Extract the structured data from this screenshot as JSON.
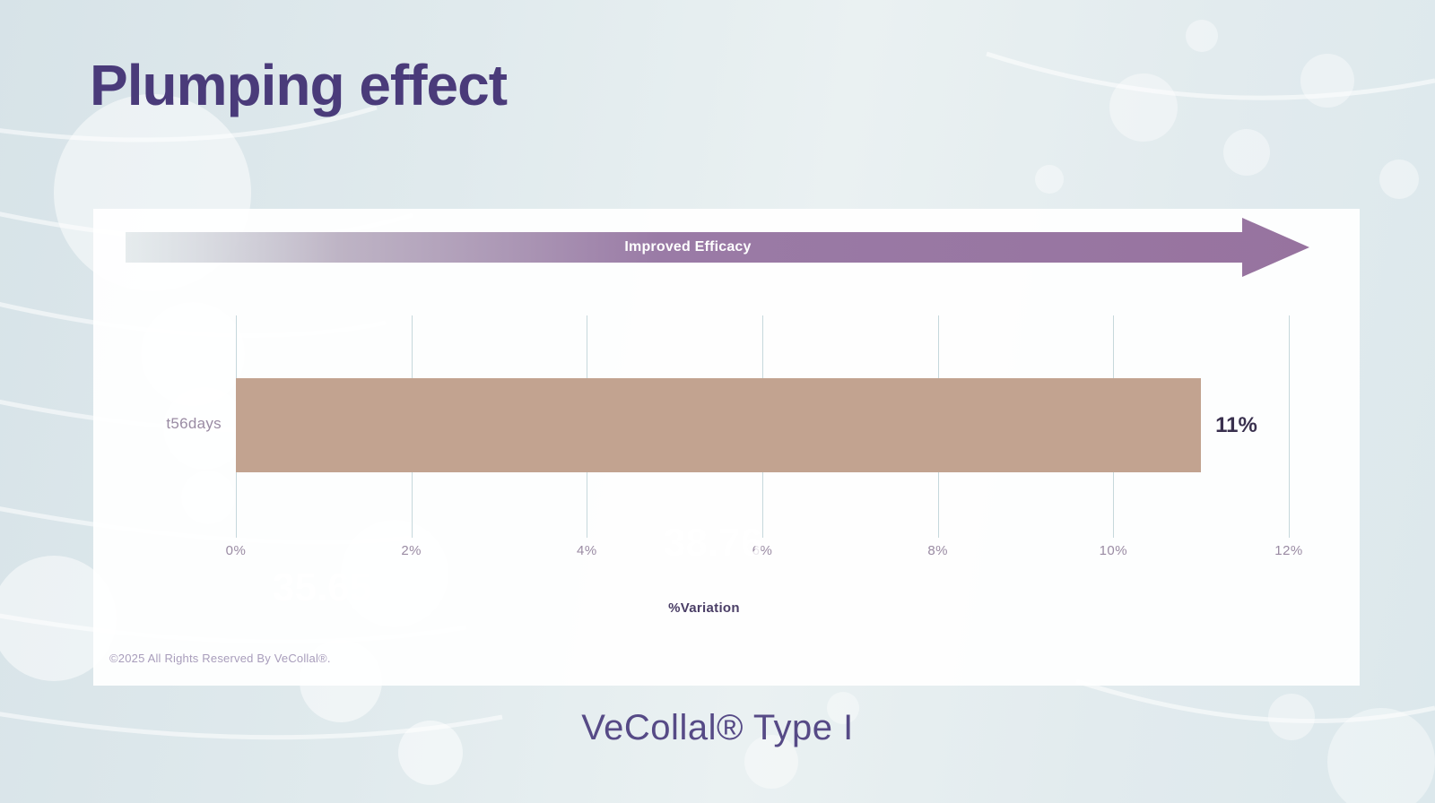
{
  "slide": {
    "title": "Plumping effect",
    "caption": "VeCollal® Type I"
  },
  "chart_data": {
    "type": "bar",
    "orientation": "horizontal",
    "title": "",
    "categories": [
      "t56days"
    ],
    "values": [
      11
    ],
    "value_labels": [
      "11%"
    ],
    "xlabel": "%Variation",
    "ylabel": "",
    "xlim": [
      0,
      12
    ],
    "x_ticks": [
      "0%",
      "2%",
      "4%",
      "6%",
      "8%",
      "10%",
      "12%"
    ],
    "grid": true,
    "legend": "none",
    "bar_color": "#c2a390"
  },
  "chart_panel": {
    "arrow_label": "Improved Efficacy",
    "copyright": "©2025 All Rights Reserved By VeCollal®.",
    "watermarks": [
      "35.65",
      "38.76"
    ]
  },
  "colors": {
    "title": "#4a3b7a",
    "caption": "#564a86",
    "arrow_purple": "#97739f",
    "arrow_start": "#c8d4d8",
    "arrow_text": "#ffffff",
    "bar": "#c2a390",
    "value_label": "#39304e",
    "axis_text": "#9a8ba3",
    "axis_title": "#4a3e66",
    "gridline": "#c6d8dc",
    "background": "#e0eaed",
    "card": "#ffffff"
  }
}
